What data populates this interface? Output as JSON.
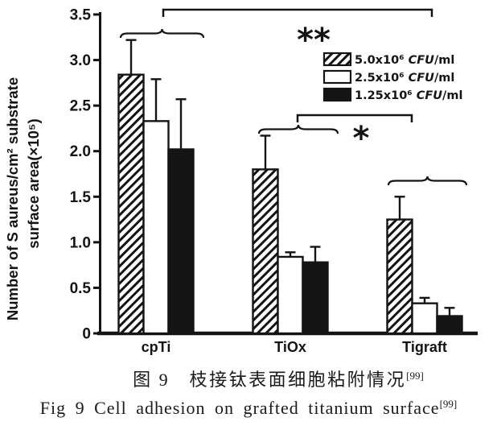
{
  "figure": {
    "caption": {
      "zh_text": "图 9　枝接钛表面细胞粘附情况",
      "zh_sup": "[99]",
      "en_text": "Fig 9 Cell adhesion on grafted titanium surface",
      "en_sup": "[99]"
    }
  },
  "colors": {
    "ink": "#141414",
    "background": "#ffffff"
  },
  "chart_data": {
    "type": "bar",
    "title": "",
    "categories": [
      "cpTi",
      "TiOx",
      "Tigraft"
    ],
    "series": [
      {
        "name": "5.0x10⁶ CFU/ml",
        "style": "hatched",
        "values": [
          2.84,
          1.8,
          1.25
        ],
        "errors_upper": [
          0.38,
          0.37,
          0.25
        ]
      },
      {
        "name": "2.5x10⁶ CFU/ml",
        "style": "white",
        "values": [
          2.33,
          0.84,
          0.33
        ],
        "errors_upper": [
          0.46,
          0.05,
          0.06
        ]
      },
      {
        "name": "1.25x10⁶ CFU/ml",
        "style": "black",
        "values": [
          2.02,
          0.78,
          0.19
        ],
        "errors_upper": [
          0.55,
          0.17,
          0.09
        ]
      }
    ],
    "xlabel": "",
    "ylabel_line1": "Number of S aureus/cm² substrate",
    "ylabel_line2": "surface area(×10⁵)",
    "ylim": [
      0,
      3.5
    ],
    "yticks": [
      "0",
      "0.5",
      "1.0",
      "1.5",
      "2.0",
      "2.5",
      "3.0",
      "3.5"
    ],
    "grid": false,
    "legend_position": "upper-right-inside",
    "error_bars": "upper-only",
    "group_braces": [
      "cpTi",
      "TiOx",
      "Tigraft"
    ],
    "significance": [
      {
        "label": "**",
        "from": "cpTi",
        "to": "Tigraft"
      },
      {
        "label": "*",
        "from": "TiOx",
        "to": "Tigraft"
      }
    ]
  }
}
